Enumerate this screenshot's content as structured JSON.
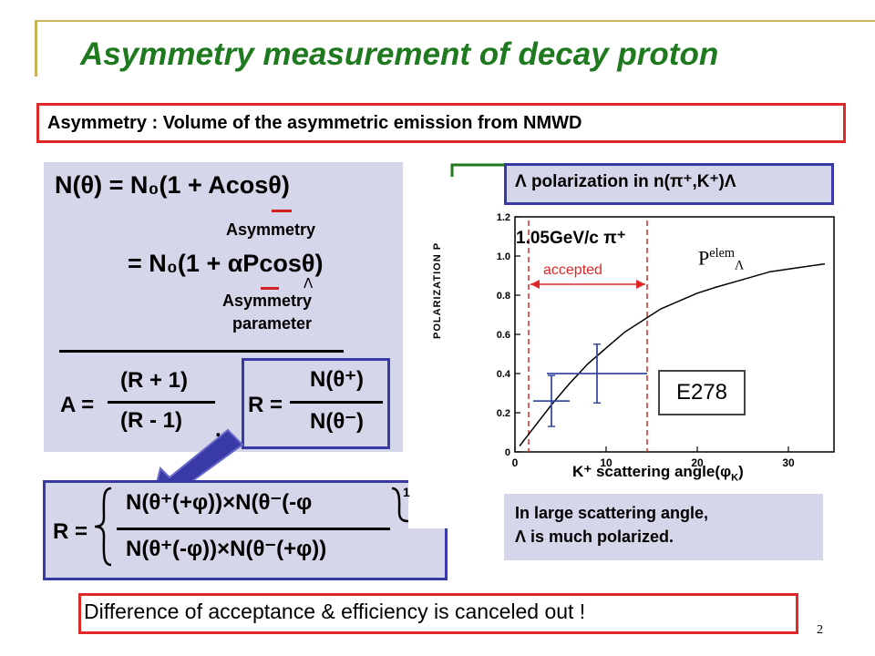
{
  "slide": {
    "title": "Asymmetry measurement of decay proton",
    "definition": "Asymmetry : Volume of the asymmetric emission from NMWD",
    "page_number": "2"
  },
  "formula": {
    "eq1": "N(θ) = N₀(1 + Acosθ)",
    "eq1_label": "Asymmetry",
    "eq2": "= N₀(1 + αPcosθ)",
    "eq2_sub": "Λ",
    "eq2_label_line1": "Asymmetry",
    "eq2_label_line2": "parameter",
    "a_lhs": "A =",
    "a_num": "(R + 1)",
    "a_den": "(R - 1)",
    "comma": ",",
    "r_lhs": "R =",
    "r_num": "N(θ⁺)",
    "r_den": "N(θ⁻)",
    "rbig_lhs": "R =",
    "rbig_num": "N(θ⁺(+φ))×N(θ⁻(-φ",
    "rbig_num_cut": "1",
    "rbig_den": "N(θ⁺(-φ))×N(θ⁻(+φ))"
  },
  "plot": {
    "header": "Λ polarization in n(π⁺,K⁺)Λ",
    "beam_label": "1.05GeV/c π⁺",
    "accepted_label": "accepted",
    "curve_label": "P",
    "curve_label_sup": "elem",
    "curve_label_sub": "Λ",
    "experiment_label": "E278",
    "y_axis_title": "POLARIZATION  P",
    "x_axis_title": "K⁺ scattering angle(φ",
    "x_axis_title_sub": "K",
    "x_axis_title_end": ")",
    "note_line1": "In large scattering angle,",
    "note_line2": "Λ is much polarized."
  },
  "footer": {
    "conclusion": "Difference of acceptance & efficiency is canceled out !"
  },
  "chart_data": {
    "type": "scatter",
    "title": "Λ polarization in n(π⁺,K⁺)Λ",
    "xlabel": "K⁺ scattering angle(φK)",
    "ylabel": "POLARIZATION PΛ",
    "xlim": [
      0,
      35
    ],
    "ylim": [
      0,
      1.2
    ],
    "x_ticks": [
      "0",
      "10",
      "20",
      "30"
    ],
    "y_ticks": [
      "0",
      "0.2",
      "0.4",
      "0.6",
      "0.8",
      "1.0",
      "1.2"
    ],
    "grid": false,
    "series": [
      {
        "name": "P elem",
        "kind": "curve",
        "x": [
          0.5,
          2,
          4,
          6,
          8,
          10,
          12,
          14,
          16,
          18,
          20,
          22,
          25,
          28,
          31,
          34
        ],
        "y": [
          0.03,
          0.12,
          0.24,
          0.35,
          0.45,
          0.53,
          0.61,
          0.67,
          0.73,
          0.77,
          0.81,
          0.84,
          0.88,
          0.92,
          0.94,
          0.96
        ]
      },
      {
        "name": "E278",
        "kind": "points",
        "x": [
          4,
          9
        ],
        "y": [
          0.26,
          0.4
        ],
        "x_err": [
          2,
          5.5
        ],
        "y_err": [
          0.13,
          0.15
        ]
      }
    ],
    "accepted_range": [
      1.5,
      14.5
    ]
  }
}
